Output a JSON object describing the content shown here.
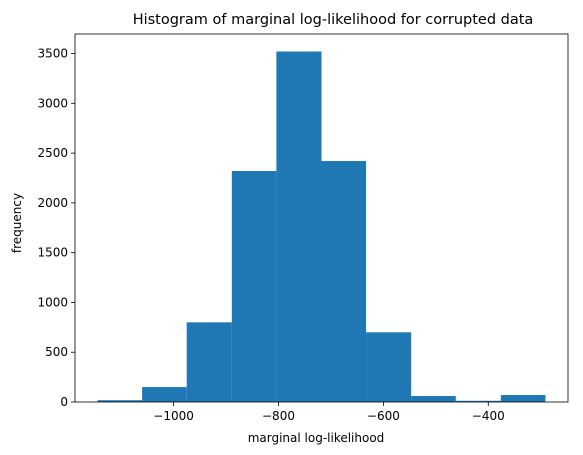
{
  "chart_data": {
    "type": "bar",
    "title": "Histogram of marginal log-likelihood for corrupted data",
    "xlabel": "marginal log-likelihood",
    "ylabel": "frequency",
    "bin_edges": [
      -1145,
      -1060,
      -975,
      -889,
      -804,
      -718,
      -633,
      -547,
      -462,
      -376,
      -291
    ],
    "values": [
      18,
      150,
      800,
      2320,
      3520,
      2420,
      700,
      60,
      12,
      70
    ],
    "xlim": [
      -1188,
      -248
    ],
    "ylim": [
      0,
      3696
    ],
    "xticks": [
      -1000,
      -800,
      -600,
      -400
    ],
    "xtick_labels": [
      "−1000",
      "−800",
      "−600",
      "−400"
    ],
    "yticks": [
      0,
      500,
      1000,
      1500,
      2000,
      2500,
      3000,
      3500
    ],
    "ytick_labels": [
      "0",
      "500",
      "1000",
      "1500",
      "2000",
      "2500",
      "3000",
      "3500"
    ],
    "grid": false,
    "bar_color": "#1f77b4"
  }
}
